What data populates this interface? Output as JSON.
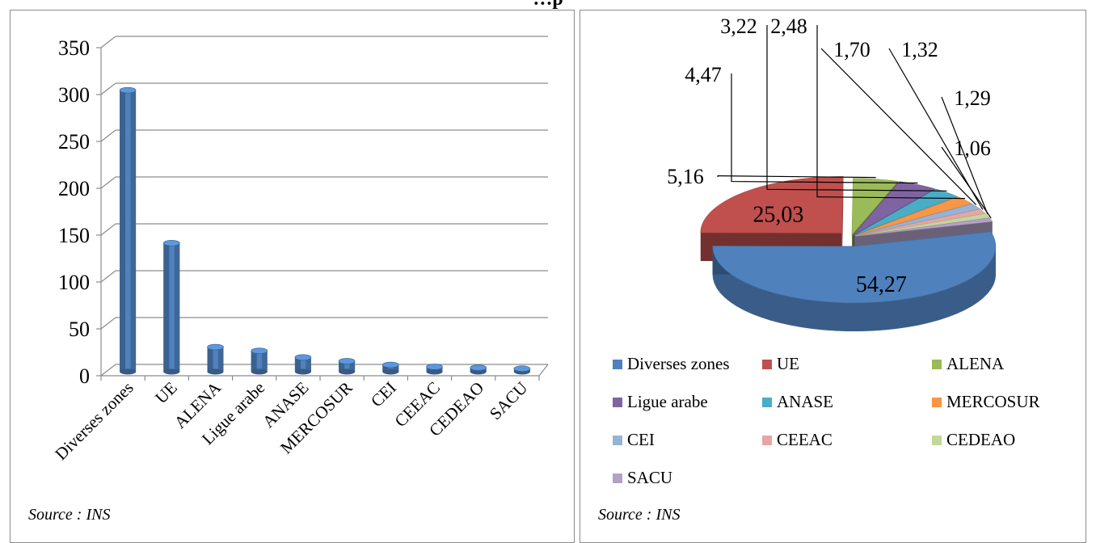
{
  "page_title": "…p",
  "source_left": "Source : INS",
  "source_right": "Source : INS",
  "colors": {
    "bar": "#4f81bd",
    "grid": "#8c8c8c",
    "pie": [
      "#4f81bd",
      "#c0504d",
      "#9bbb59",
      "#8064a2",
      "#4bacc6",
      "#f79646",
      "#95b3d7",
      "#e6a6a6",
      "#c3d69b",
      "#b3a2c7"
    ]
  },
  "chart_data": [
    {
      "type": "bar",
      "title": "",
      "xlabel": "",
      "ylabel": "",
      "ylim": [
        0,
        350
      ],
      "yticks": [
        "0",
        "50",
        "100",
        "150",
        "200",
        "250",
        "300",
        "350"
      ],
      "grid": true,
      "categories": [
        "Diverses zones",
        "UE",
        "ALENA",
        "Ligue arabe",
        "ANASE",
        "MERCOSUR",
        "CEI",
        "CEEAC",
        "CEDEAO",
        "SACU"
      ],
      "values": [
        302,
        139,
        28,
        24,
        17,
        13,
        9,
        7,
        6,
        5
      ]
    },
    {
      "type": "pie",
      "title": "",
      "legend_position": "bottom",
      "labels": [
        "Diverses zones",
        "UE",
        "ALENA",
        "Ligue arabe",
        "ANASE",
        "MERCOSUR",
        "CEI",
        "CEEAC",
        "CEDEAO",
        "SACU"
      ],
      "values": [
        54.27,
        25.03,
        5.16,
        4.47,
        3.22,
        2.48,
        1.7,
        1.32,
        1.29,
        1.06
      ],
      "value_labels": [
        "54,27",
        "25,03",
        "5,16",
        "4,47",
        "3,22",
        "2,48",
        "1,70",
        "1,32",
        "1,29",
        "1,06"
      ]
    }
  ]
}
